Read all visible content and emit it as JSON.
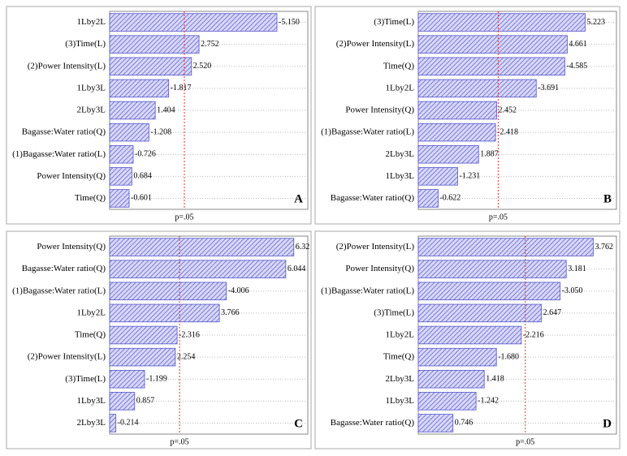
{
  "chart_data": [
    {
      "type": "bar",
      "orientation": "horizontal",
      "panel_label": "A",
      "color": "#5555cc",
      "categories": [
        "1Lby2L",
        "(3)Time(L)",
        "(2)Power Intensity(L)",
        "1Lby3L",
        "2Lby3L",
        "Bagasse:Water ratio(Q)",
        "(1)Bagasse:Water ratio(L)",
        "Power Intensity(Q)",
        "Time(Q)"
      ],
      "values": [
        -5.15,
        2.752,
        2.52,
        -1.817,
        1.404,
        -1.208,
        -0.726,
        0.684,
        -0.601
      ],
      "value_labels": [
        "-5.150",
        "2.752",
        "2.520",
        "-1.817",
        "1.404",
        "-1.208",
        "-0.726",
        "0.684",
        "-0.601"
      ],
      "xlim": [
        0,
        6.1
      ],
      "ref_line": {
        "value": 2.3,
        "label": "p=.05"
      }
    },
    {
      "type": "bar",
      "orientation": "horizontal",
      "panel_label": "B",
      "color": "#5555cc",
      "categories": [
        "(3)Time(L)",
        "(2)Power Intensity(L)",
        "Time(Q)",
        "1Lby2L",
        "Power Intensity(Q)",
        "(1)Bagasse:Water ratio(L)",
        "2Lby3L",
        "1Lby3L",
        "Bagasse:Water ratio(Q)"
      ],
      "values": [
        5.223,
        4.661,
        -4.585,
        -3.691,
        2.452,
        -2.418,
        1.887,
        -1.231,
        -0.622
      ],
      "value_labels": [
        "5.223",
        "4.661",
        "-4.585",
        "-3.691",
        "2.452",
        "-2.418",
        "1.887",
        "-1.231",
        "-0.622"
      ],
      "xlim": [
        0,
        6.2
      ],
      "ref_line": {
        "value": 2.5,
        "label": "p=.05"
      }
    },
    {
      "type": "bar",
      "orientation": "horizontal",
      "panel_label": "C",
      "color": "#5555cc",
      "categories": [
        "Power Intensity(Q)",
        "Bagasse:Water ratio(Q)",
        "(1)Bagasse:Water ratio(L)",
        "1Lby2L",
        "Time(Q)",
        "(2)Power Intensity(L)",
        "(3)Time(L)",
        "1Lby3L",
        "2Lby3L"
      ],
      "values": [
        6.32,
        6.044,
        -4.006,
        3.766,
        -2.316,
        2.254,
        -1.199,
        0.857,
        -0.214
      ],
      "value_labels": [
        "6.32",
        "6.044",
        "-4.006",
        "3.766",
        "-2.316",
        "2.254",
        "-1.199",
        "0.857",
        "-0.214"
      ],
      "xlim": [
        0,
        6.8
      ],
      "ref_line": {
        "value": 2.4,
        "label": "p=.05"
      }
    },
    {
      "type": "bar",
      "orientation": "horizontal",
      "panel_label": "D",
      "color": "#5555cc",
      "categories": [
        "(2)Power Intensity(L)",
        "Power Intensity(Q)",
        "(1)Bagasse:Water ratio(L)",
        "(3)Time(L)",
        "1Lby2L",
        "Time(Q)",
        "2Lby3L",
        "1Lby3L",
        "Bagasse:Water ratio(Q)"
      ],
      "values": [
        3.762,
        3.181,
        -3.05,
        2.647,
        -2.216,
        -1.68,
        1.418,
        -1.242,
        0.746
      ],
      "value_labels": [
        "3.762",
        "3.181",
        "-3.050",
        "2.647",
        "-2.216",
        "-1.680",
        "1.418",
        "-1.242",
        "0.746"
      ],
      "xlim": [
        0,
        4.26
      ],
      "ref_line": {
        "value": 2.3,
        "label": "p=.05"
      }
    }
  ]
}
